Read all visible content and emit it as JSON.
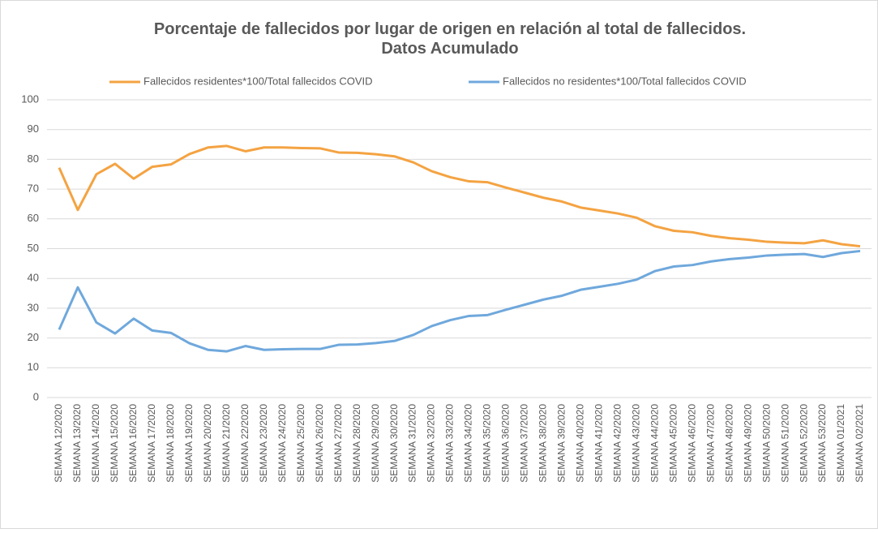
{
  "chart_data": {
    "type": "line",
    "title": "Porcentaje de fallecidos por lugar de origen en relación al total de fallecidos.",
    "subtitle": "Datos Acumulado",
    "categories": [
      "SEMANA 12/2020",
      "SEMANA 13/2020",
      "SEMANA 14/2020",
      "SEMANA 15/2020",
      "SEMANA 16/2020",
      "SEMANA 17/2020",
      "SEMANA 18/2020",
      "SEMANA 19/2020",
      "SEMANA 20/2020",
      "SEMANA 21/2020",
      "SEMANA 22/2020",
      "SEMANA 23/2020",
      "SEMANA 24/2020",
      "SEMANA 25/2020",
      "SEMANA 26/2020",
      "SEMANA 27/2020",
      "SEMANA 28/2020",
      "SEMANA 29/2020",
      "SEMANA 30/2020",
      "SEMANA 31/2020",
      "SEMANA 32/2020",
      "SEMANA 33/2020",
      "SEMANA 34/2020",
      "SEMANA 35/2020",
      "SEMANA 36/2020",
      "SEMANA 37/2020",
      "SEMANA 38/2020",
      "SEMANA 39/2020",
      "SEMANA 40/2020",
      "SEMANA 41/2020",
      "SEMANA 42/2020",
      "SEMANA 43/2020",
      "SEMANA 44/2020",
      "SEMANA 45/2020",
      "SEMANA 46/2020",
      "SEMANA 47/2020",
      "SEMANA 48/2020",
      "SEMANA 49/2020",
      "SEMANA 50/2020",
      "SEMANA 51/2020",
      "SEMANA 52/2020",
      "SEMANA 53/2020",
      "SEMANA 01/2021",
      "SEMANA 02/2021"
    ],
    "series": [
      {
        "name": "Fallecidos residentes*100/Total fallecidos COVID",
        "color": "#f4a342",
        "values": [
          77.2,
          63,
          75,
          78.5,
          73.5,
          77.5,
          78.3,
          81.8,
          84,
          84.5,
          82.7,
          84,
          84,
          83.8,
          83.7,
          82.3,
          82.2,
          81.7,
          81,
          79,
          76,
          74,
          72.6,
          72.3,
          70.5,
          68.8,
          67.1,
          65.8,
          63.8,
          62.8,
          61.8,
          60.4,
          57.5,
          56,
          55.5,
          54.3,
          53.5,
          53,
          52.3,
          52,
          51.8,
          52.8,
          51.5,
          50.8
        ]
      },
      {
        "name": "Fallecidos no residentes*100/Total fallecidos COVID",
        "color": "#6fa8dc",
        "values": [
          22.8,
          37,
          25.2,
          21.5,
          26.5,
          22.5,
          21.7,
          18.2,
          16,
          15.5,
          17.3,
          16,
          16.2,
          16.3,
          16.3,
          17.7,
          17.8,
          18.3,
          19,
          21,
          24,
          26,
          27.4,
          27.7,
          29.5,
          31.2,
          32.9,
          34.2,
          36.2,
          37.2,
          38.2,
          39.6,
          42.5,
          44,
          44.5,
          45.7,
          46.5,
          47,
          47.7,
          48,
          48.2,
          47.2,
          48.5,
          49.2
        ]
      }
    ],
    "ylim": [
      0,
      100
    ],
    "yticks": [
      0,
      10,
      20,
      30,
      40,
      50,
      60,
      70,
      80,
      90,
      100
    ],
    "grid": true,
    "legend": "top"
  }
}
